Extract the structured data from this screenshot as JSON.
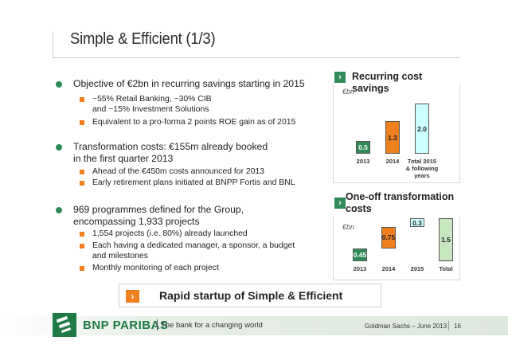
{
  "title": "Simple & Efficient (1/3)",
  "bullets": [
    {
      "text": "Objective of €2bn in recurring savings starting in 2015",
      "subs": [
        "~55% Retail Banking, ~30% CIB\nand ~15% Investment Solutions",
        "Equivalent to a pro-forma 2 points ROE gain as of 2015"
      ]
    },
    {
      "text": "Transformation costs: €155m already booked\nin the first quarter 2013",
      "subs": [
        "Ahead of the €450m costs announced for 2013",
        "Early retirement plans initiated at BNPP Fortis and BNL"
      ]
    },
    {
      "text": "969 programmes defined for the Group,\nencompassing 1,933 projects",
      "subs": [
        "1,554 projects (i.e. 80%) already launched",
        "Each having a dedicated manager, a sponsor, a budget\nand milestones",
        "Monthly monitoring of each project"
      ]
    }
  ],
  "recurring_panel": {
    "chevron": "›",
    "title": "Recurring cost savings",
    "unit": "€bn"
  },
  "oneoff_panel": {
    "chevron": "›",
    "title": "One-off transformation\ncosts",
    "unit": "€bn"
  },
  "chart_data": [
    {
      "type": "bar",
      "title": "Recurring cost savings",
      "ylabel": "€bn",
      "categories": [
        "2013",
        "2014",
        "Total 2015\n& following\nyears"
      ],
      "values": [
        0.5,
        1.3,
        2.0
      ],
      "value_labels": [
        "0.5",
        "1.3",
        "2.0"
      ],
      "colors": [
        "#2e8b57",
        "#f07f1e",
        "#ccffff"
      ],
      "ylim": [
        0,
        2.0
      ]
    },
    {
      "type": "bar",
      "title": "One-off transformation\ncosts",
      "ylabel": "€bn",
      "categories": [
        "2013",
        "2014",
        "2015",
        "Total"
      ],
      "values": [
        0.45,
        0.75,
        0.3,
        1.5
      ],
      "value_labels": [
        "0.45",
        "0.75",
        "0.3",
        "1.5"
      ],
      "colors": [
        "#2e8b57",
        "#f07f1e",
        "#ccffff",
        "#c8e6c0"
      ],
      "waterfall": true,
      "ylim": [
        0,
        1.5
      ]
    }
  ],
  "callout": {
    "arrow": "›",
    "text": "Rapid startup of Simple & Efficient"
  },
  "footer": {
    "brand": "BNP PARIBAS",
    "tagline": "The bank for a changing world",
    "event": "Goldman Sachs – June 2013",
    "page": "16"
  }
}
